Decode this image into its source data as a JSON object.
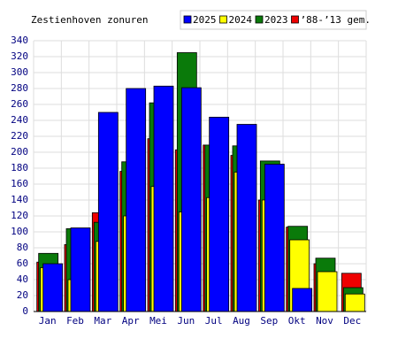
{
  "chart_data": {
    "type": "bar",
    "title": "Zestienhoven zonuren",
    "categories": [
      "Jan",
      "Feb",
      "Mar",
      "Apr",
      "Mei",
      "Jun",
      "Jul",
      "Aug",
      "Sep",
      "Okt",
      "Nov",
      "Dec"
    ],
    "series": [
      {
        "name": "2025",
        "color": "#0000ff",
        "values": [
          60,
          105,
          250,
          280,
          283,
          281,
          244,
          235,
          185,
          29,
          null,
          null
        ]
      },
      {
        "name": "2024",
        "color": "#ffff00",
        "values": [
          55,
          40,
          88,
          120,
          157,
          125,
          143,
          175,
          140,
          90,
          50,
          22
        ]
      },
      {
        "name": "2023",
        "color": "#0a7a0a",
        "values": [
          73,
          104,
          112,
          188,
          262,
          325,
          209,
          208,
          189,
          107,
          67,
          30
        ]
      },
      {
        "name": "’88-’13 gem.",
        "color": "#ee0000",
        "values": [
          62,
          84,
          124,
          176,
          217,
          203,
          209,
          196,
          140,
          106,
          60,
          48
        ]
      }
    ],
    "ylim": [
      0,
      340
    ],
    "yticks": [
      0,
      20,
      40,
      60,
      80,
      100,
      120,
      140,
      160,
      180,
      200,
      220,
      240,
      260,
      280,
      300,
      320,
      340
    ],
    "grid": true
  }
}
